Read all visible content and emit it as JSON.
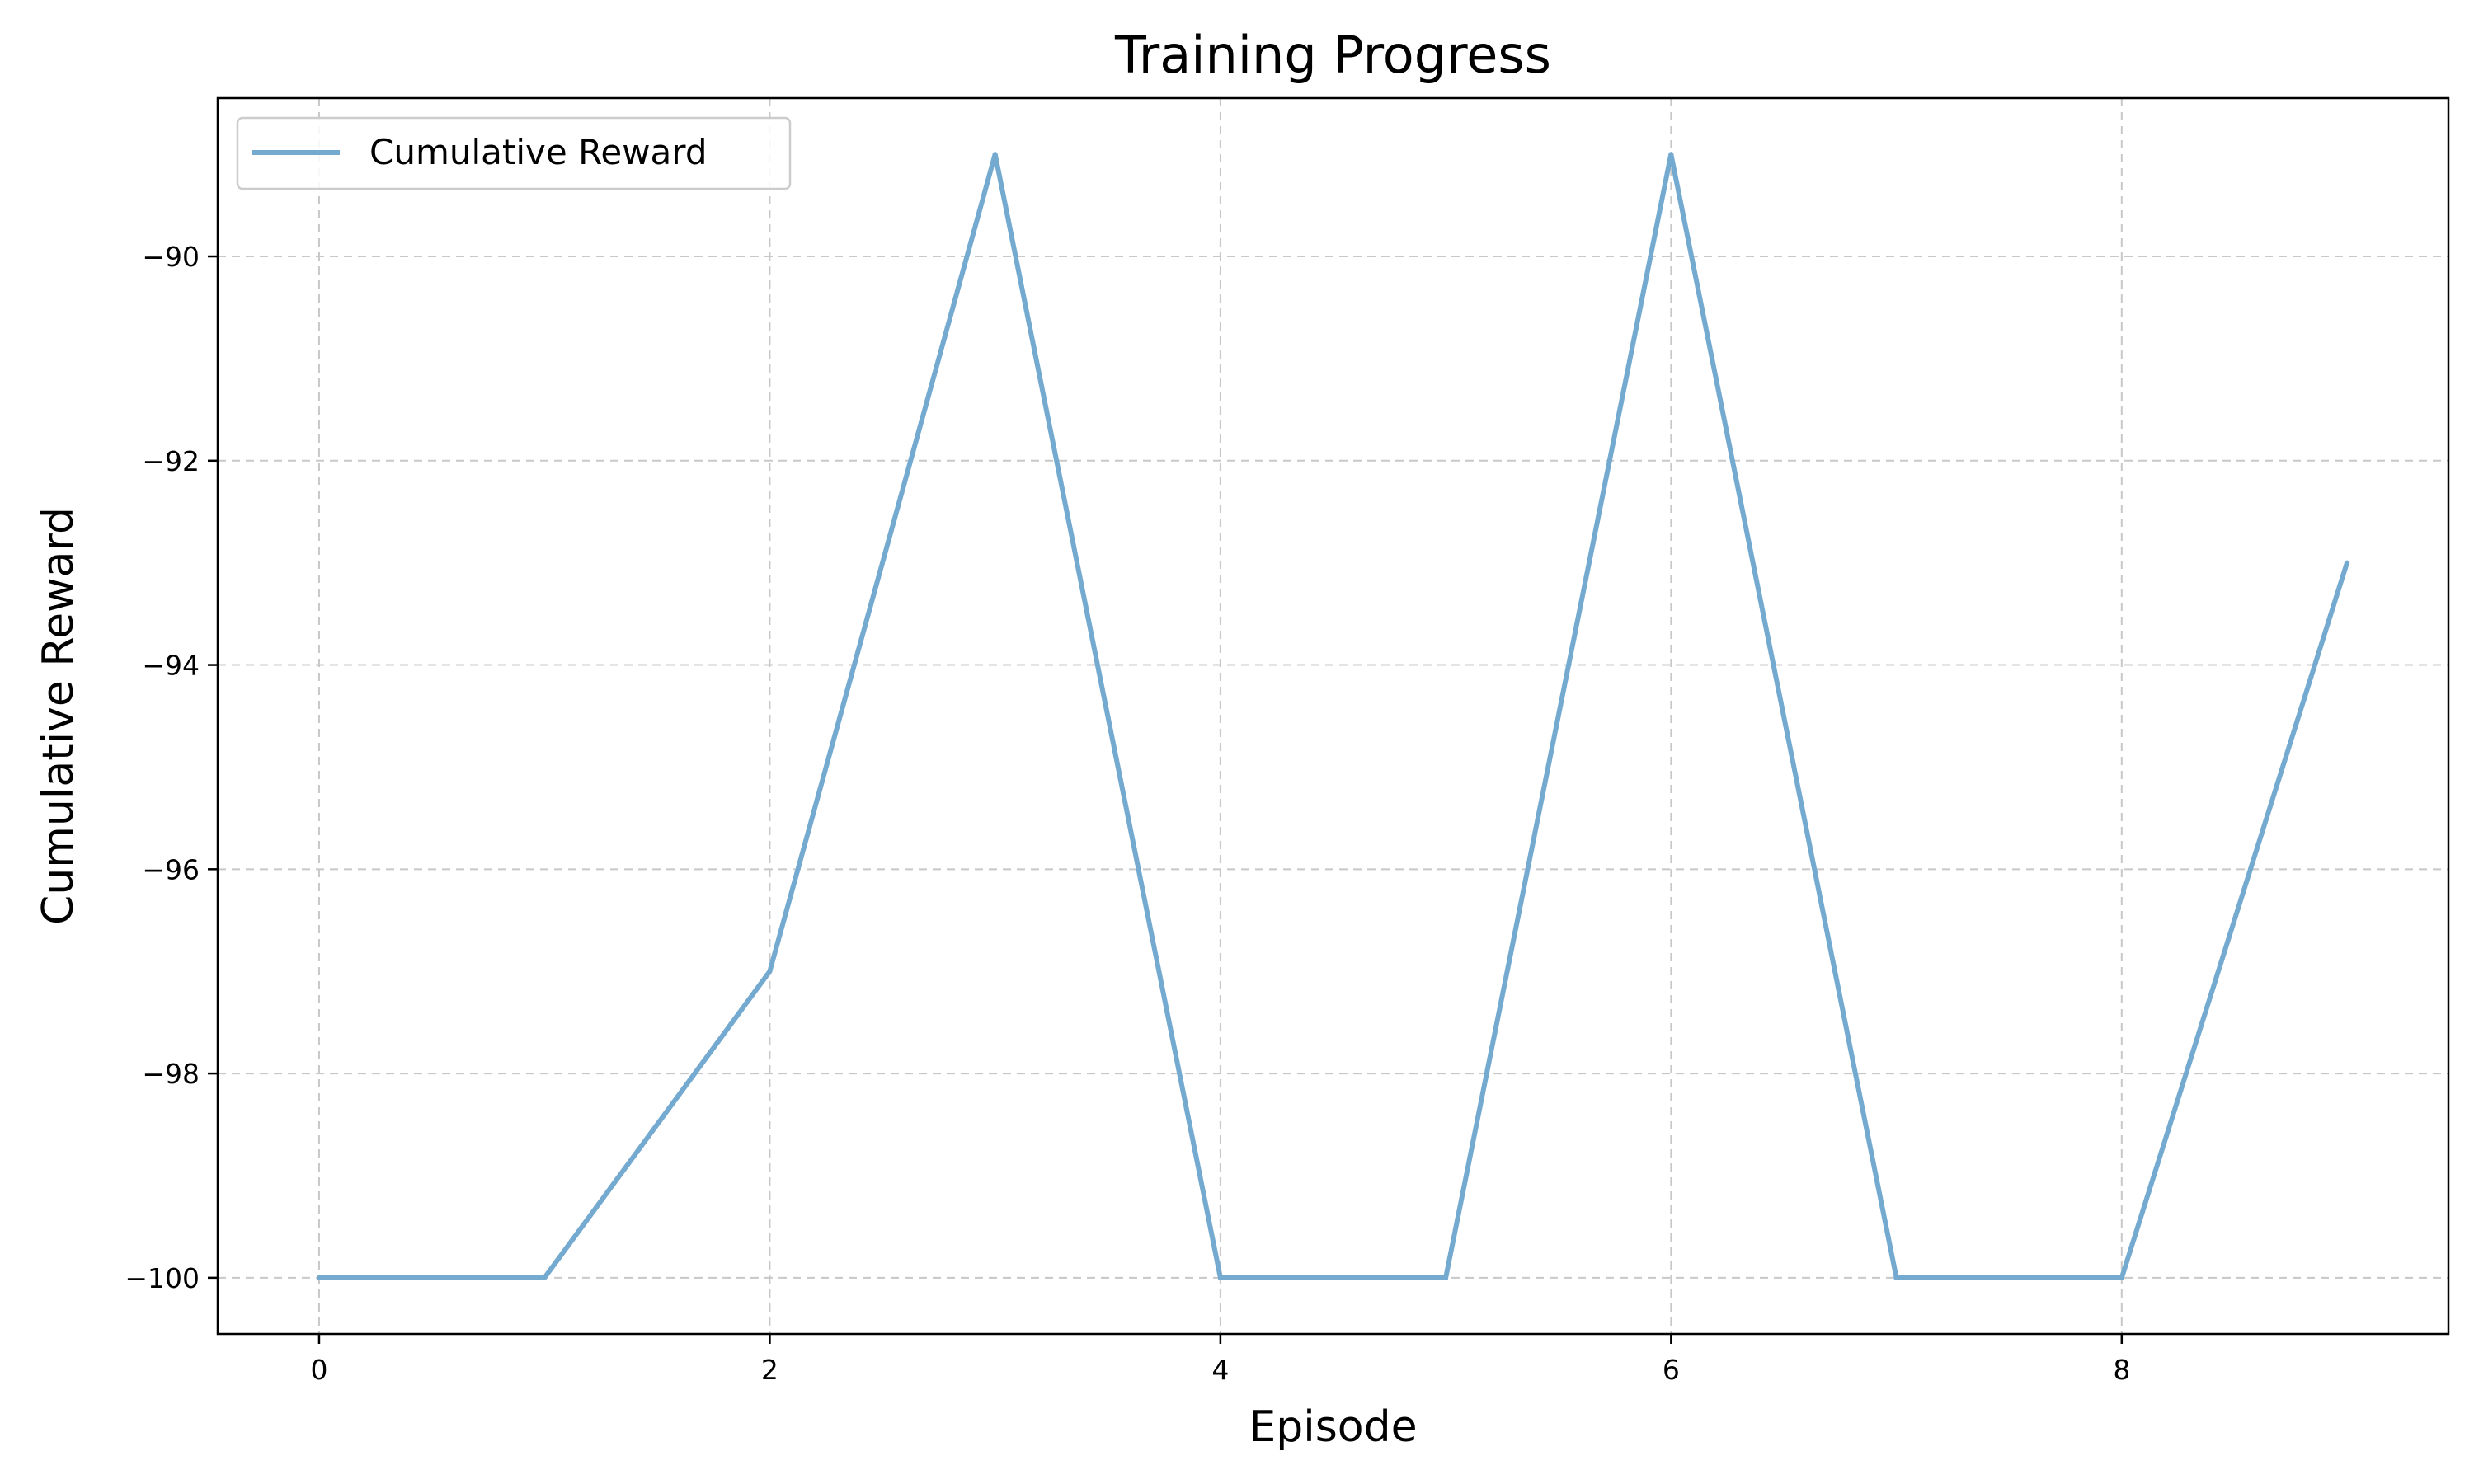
{
  "chart_data": {
    "type": "line",
    "title": "Training Progress",
    "xlabel": "Episode",
    "ylabel": "Cumulative Reward",
    "x": [
      0,
      1,
      2,
      3,
      4,
      5,
      6,
      7,
      8,
      9
    ],
    "series": [
      {
        "name": "Cumulative Reward",
        "values": [
          -100,
          -100,
          -97,
          -89,
          -100,
          -100,
          -89,
          -100,
          -100,
          -93
        ],
        "color": "#75aad0"
      }
    ],
    "xlim": [
      -0.45,
      9.45
    ],
    "ylim": [
      -100.55,
      -88.45
    ],
    "xticks": [
      0,
      2,
      4,
      6,
      8
    ],
    "yticks": [
      -100,
      -98,
      -96,
      -94,
      -92,
      -90
    ],
    "xtick_labels": [
      "0",
      "2",
      "4",
      "6",
      "8"
    ],
    "ytick_labels": [
      "−100",
      "−98",
      "−96",
      "−94",
      "−92",
      "−90"
    ],
    "grid": true,
    "grid_style": "dashed",
    "legend_position": "upper-left"
  }
}
